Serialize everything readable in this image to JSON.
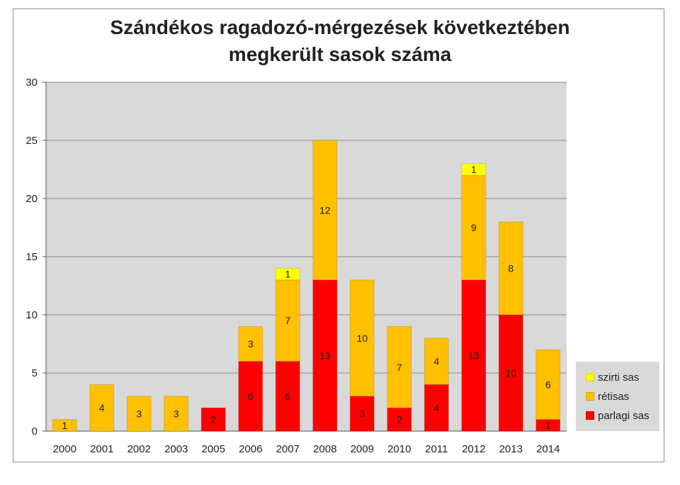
{
  "chart_data": {
    "type": "bar",
    "stacked": true,
    "title_line1": "Szándékos ragadozó-mérgezések következtében",
    "title_line2": "megkerült sasok száma",
    "categories": [
      "2000",
      "2001",
      "2002",
      "2003",
      "2005",
      "2006",
      "2007",
      "2008",
      "2009",
      "2010",
      "2011",
      "2012",
      "2013",
      "2014"
    ],
    "series": [
      {
        "name": "parlagi sas",
        "color": "#ff0000",
        "values": [
          0,
          0,
          0,
          0,
          2,
          6,
          6,
          13,
          3,
          2,
          4,
          13,
          10,
          1
        ]
      },
      {
        "name": "rétisas",
        "color": "#ffc000",
        "values": [
          1,
          4,
          3,
          3,
          0,
          3,
          7,
          12,
          10,
          7,
          4,
          9,
          8,
          6
        ]
      },
      {
        "name": "szirti sas",
        "color": "#ffff00",
        "values": [
          0,
          0,
          0,
          0,
          0,
          0,
          1,
          0,
          0,
          0,
          0,
          1,
          0,
          0
        ]
      }
    ],
    "ylim": [
      0,
      30
    ],
    "yticks": [
      "0",
      "5",
      "10",
      "15",
      "20",
      "25",
      "30"
    ],
    "grid": true,
    "legend_position": "right-bottom",
    "legend_order": [
      "szirti sas",
      "rétisas",
      "parlagi sas"
    ],
    "plot_background": "#d9d9d9"
  }
}
